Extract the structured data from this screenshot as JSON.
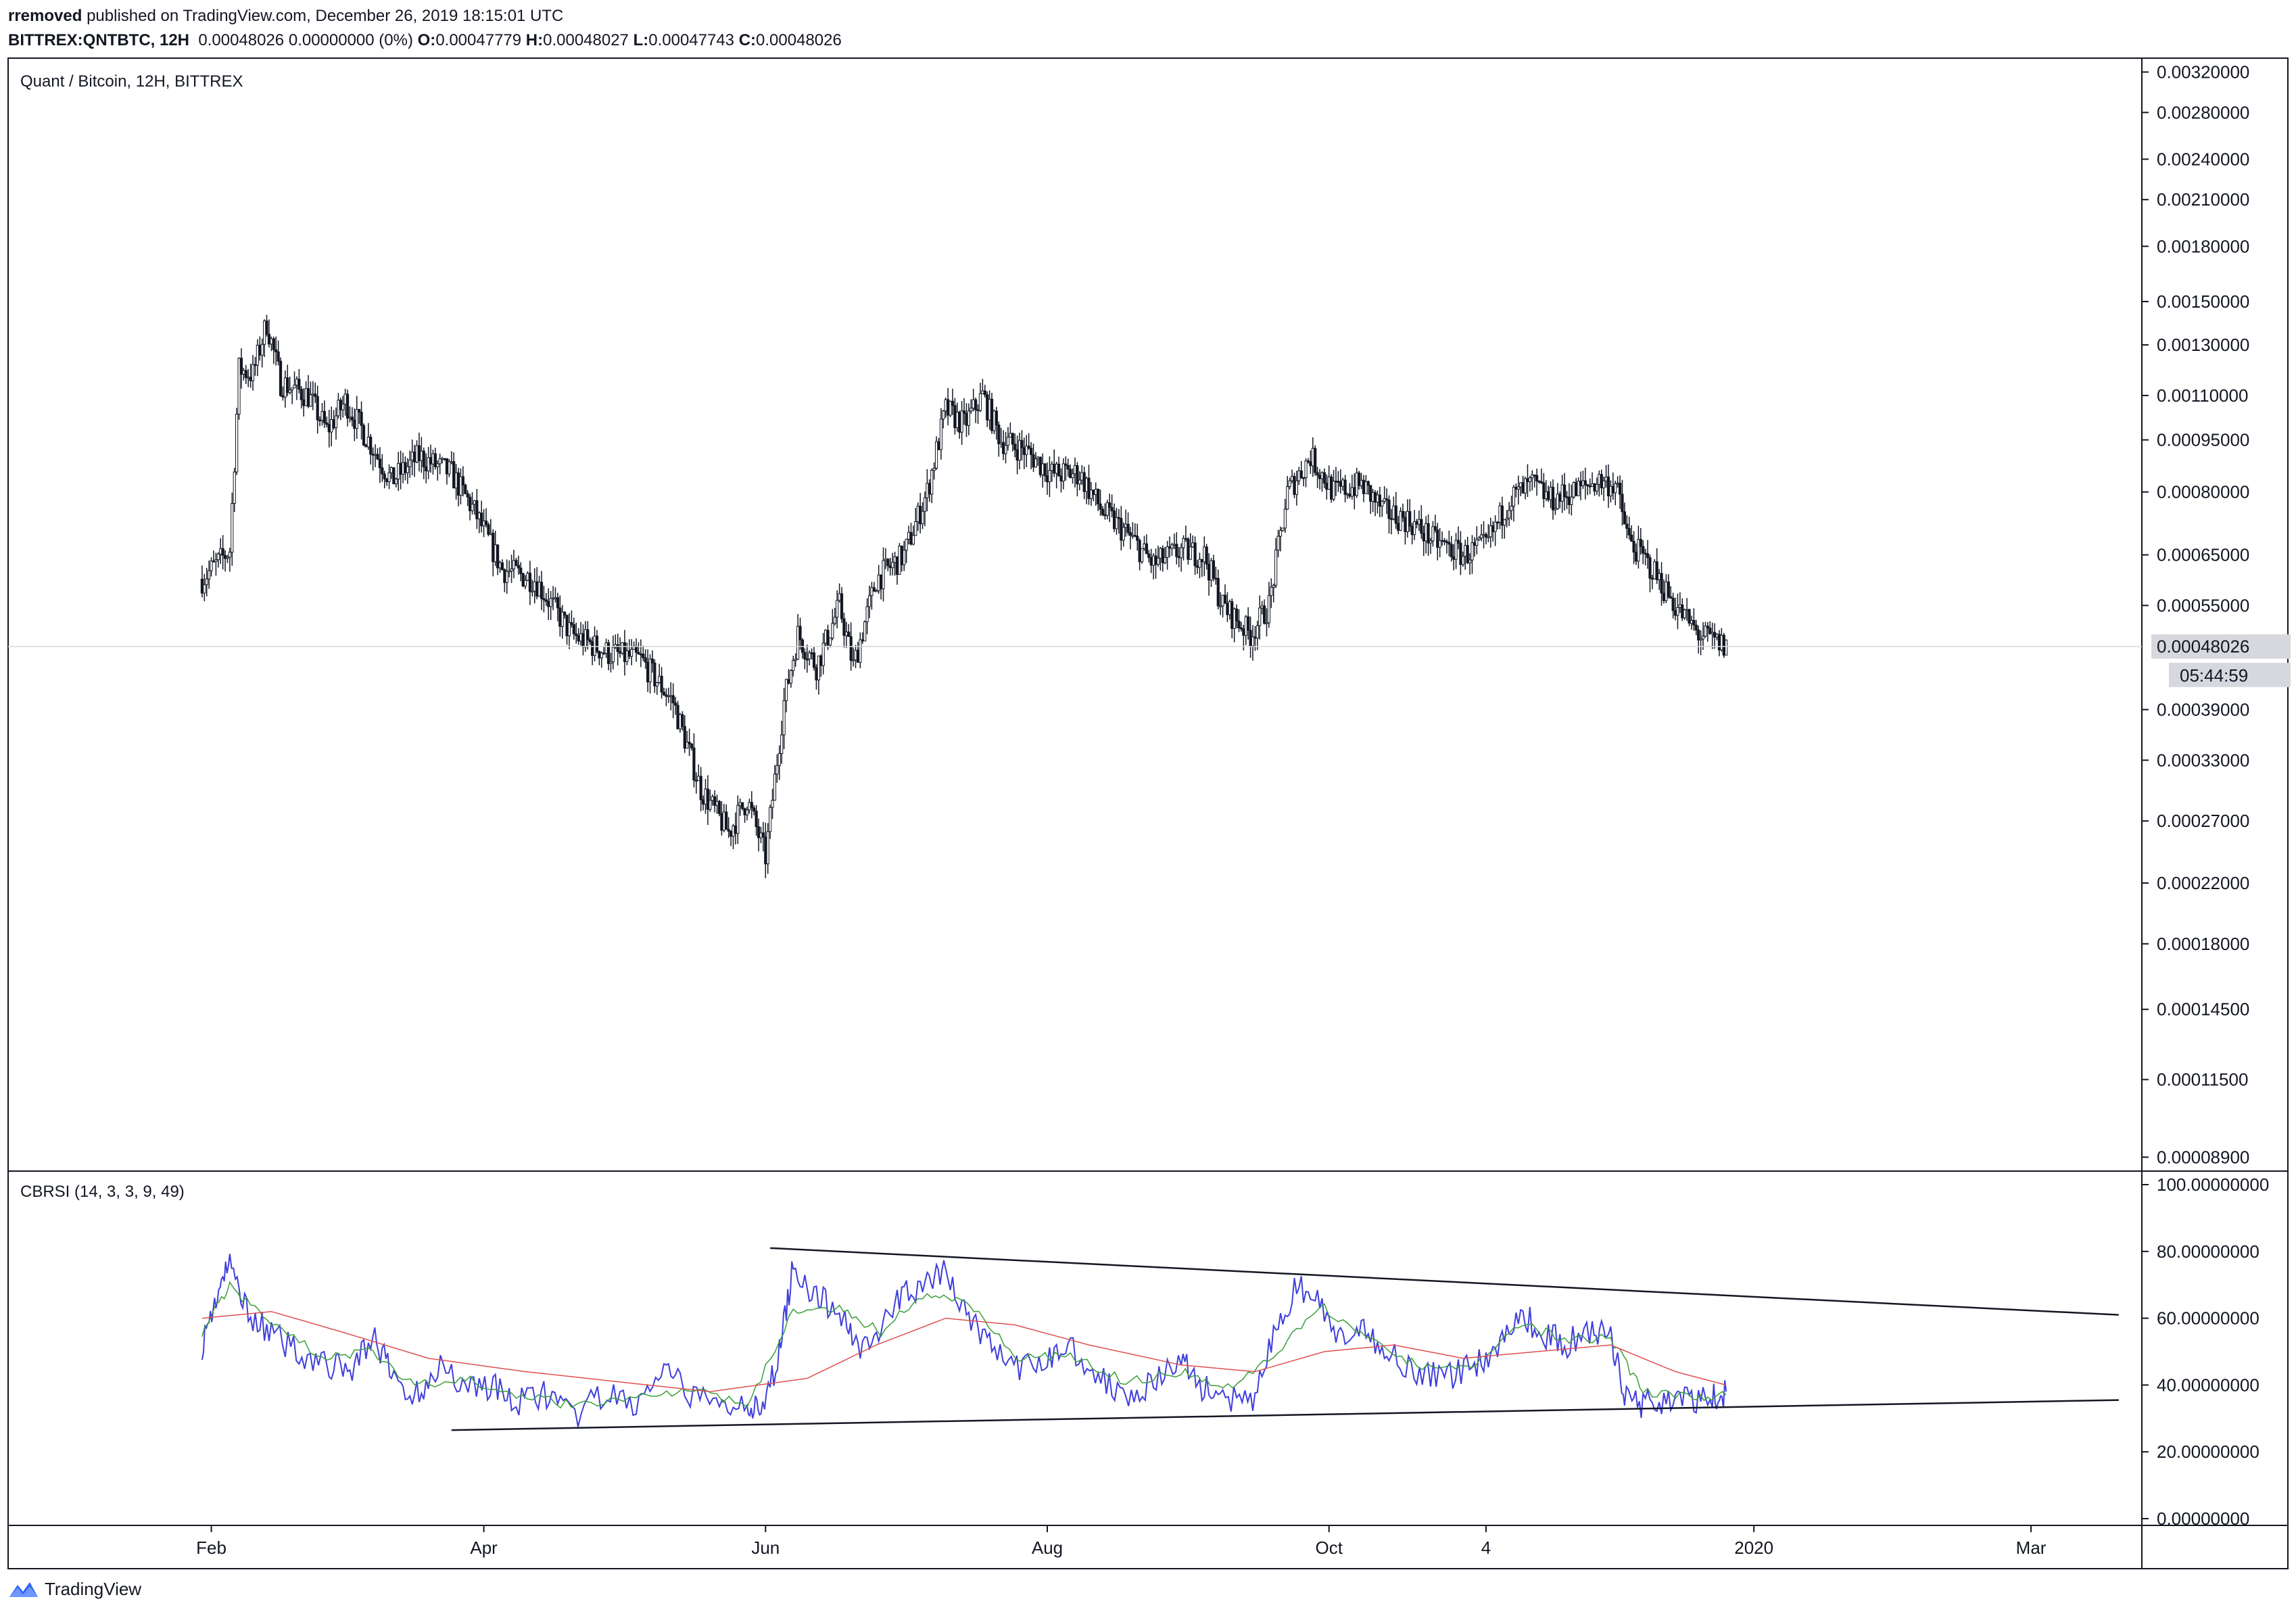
{
  "header": {
    "author": "rremoved",
    "published_text": "published on TradingView.com, December 26, 2019 18:15:01 UTC",
    "symbol": "BITTREX:QNTBTC, 12H",
    "ohlc_prefix": "0.00048026 0.00000000 (0%)",
    "open_label": "O:",
    "open": "0.00047779",
    "high_label": "H:",
    "high": "0.00048027",
    "low_label": "L:",
    "low": "0.00047743",
    "close_label": "C:",
    "close": "0.00048026"
  },
  "footer": {
    "brand": "TradingView",
    "logo_icon": "tradingview-logo-icon"
  },
  "chart_data": [
    {
      "type": "candlestick",
      "title": "Quant / Bitcoin, 12H, BITTREX",
      "scale": "log",
      "price_ticks": [
        "0.00320000",
        "0.00280000",
        "0.00240000",
        "0.00210000",
        "0.00180000",
        "0.00150000",
        "0.00130000",
        "0.00110000",
        "0.00095000",
        "0.00080000",
        "0.00065000",
        "0.00055000",
        "0.00039000",
        "0.00033000",
        "0.00027000",
        "0.00022000",
        "0.00018000",
        "0.00014500",
        "0.00011500",
        "0.00008900"
      ],
      "last_price": "0.00048026",
      "countdown": "05:44:59",
      "ylim": [
        8.5e-05,
        0.00335
      ],
      "x_labels": [
        "Feb",
        "Apr",
        "Jun",
        "Aug",
        "Oct",
        "4",
        "2020",
        "Mar"
      ],
      "x_label_dates": [
        "2019-02-01",
        "2019-04-01",
        "2019-06-01",
        "2019-08-01",
        "2019-10-01",
        "2019-11-04",
        "2020-01-01",
        "2020-03-01"
      ],
      "x_range": [
        "2018-12-19",
        "2020-03-25"
      ],
      "price_path": [
        [
          "2019-01-30",
          0.0006
        ],
        [
          "2019-02-05",
          0.00066
        ],
        [
          "2019-02-07",
          0.0012
        ],
        [
          "2019-02-10",
          0.00118
        ],
        [
          "2019-02-13",
          0.0014
        ],
        [
          "2019-02-16",
          0.00115
        ],
        [
          "2019-02-22",
          0.0011
        ],
        [
          "2019-02-26",
          0.00098
        ],
        [
          "2019-03-02",
          0.00108
        ],
        [
          "2019-03-07",
          0.00095
        ],
        [
          "2019-03-12",
          0.00083
        ],
        [
          "2019-03-18",
          0.0009
        ],
        [
          "2019-03-25",
          0.00085
        ],
        [
          "2019-03-30",
          0.00075
        ],
        [
          "2019-04-05",
          0.00062
        ],
        [
          "2019-04-12",
          0.0006
        ],
        [
          "2019-04-20",
          0.0005
        ],
        [
          "2019-04-28",
          0.00047
        ],
        [
          "2019-05-05",
          0.00046
        ],
        [
          "2019-05-12",
          0.0004
        ],
        [
          "2019-05-18",
          0.0003
        ],
        [
          "2019-05-24",
          0.00026
        ],
        [
          "2019-05-28",
          0.00029
        ],
        [
          "2019-06-01",
          0.00024
        ],
        [
          "2019-06-05",
          0.0004
        ],
        [
          "2019-06-08",
          0.0005
        ],
        [
          "2019-06-12",
          0.00045
        ],
        [
          "2019-06-17",
          0.00055
        ],
        [
          "2019-06-20",
          0.00045
        ],
        [
          "2019-06-25",
          0.0006
        ],
        [
          "2019-07-01",
          0.00065
        ],
        [
          "2019-07-06",
          0.0008
        ],
        [
          "2019-07-10",
          0.00105
        ],
        [
          "2019-07-14",
          0.001
        ],
        [
          "2019-07-18",
          0.0011
        ],
        [
          "2019-07-22",
          0.00095
        ],
        [
          "2019-07-27",
          0.00092
        ],
        [
          "2019-08-02",
          0.00085
        ],
        [
          "2019-08-08",
          0.00085
        ],
        [
          "2019-08-13",
          0.00075
        ],
        [
          "2019-08-18",
          0.0007
        ],
        [
          "2019-08-24",
          0.00063
        ],
        [
          "2019-08-30",
          0.00066
        ],
        [
          "2019-09-04",
          0.00065
        ],
        [
          "2019-09-08",
          0.00055
        ],
        [
          "2019-09-14",
          0.0005
        ],
        [
          "2019-09-18",
          0.00055
        ],
        [
          "2019-09-22",
          0.0008
        ],
        [
          "2019-09-27",
          0.0009
        ],
        [
          "2019-10-02",
          0.0008
        ],
        [
          "2019-10-08",
          0.00082
        ],
        [
          "2019-10-13",
          0.00075
        ],
        [
          "2019-10-18",
          0.00073
        ],
        [
          "2019-10-24",
          0.00068
        ],
        [
          "2019-10-30",
          0.00065
        ],
        [
          "2019-11-04",
          0.00067
        ],
        [
          "2019-11-09",
          0.00078
        ],
        [
          "2019-11-14",
          0.00082
        ],
        [
          "2019-11-18",
          0.00078
        ],
        [
          "2019-11-23",
          0.0008
        ],
        [
          "2019-11-28",
          0.00083
        ],
        [
          "2019-12-02",
          0.00082
        ],
        [
          "2019-12-05",
          0.00068
        ],
        [
          "2019-12-10",
          0.00062
        ],
        [
          "2019-12-15",
          0.00055
        ],
        [
          "2019-12-20",
          0.0005
        ],
        [
          "2019-12-26",
          0.00048
        ]
      ]
    },
    {
      "type": "line",
      "title": "CBRSI (14, 3, 3, 9, 49)",
      "ylim": [
        0,
        100
      ],
      "y_ticks": [
        "100.00000000",
        "80.00000000",
        "60.00000000",
        "40.00000000",
        "20.00000000",
        "0.00000000"
      ],
      "series": [
        {
          "color": "#3f3fdc",
          "values": [
            [
              "2019-01-30",
              52
            ],
            [
              "2019-02-02",
              66
            ],
            [
              "2019-02-05",
              76
            ],
            [
              "2019-02-09",
              62
            ],
            [
              "2019-02-14",
              55
            ],
            [
              "2019-02-20",
              50
            ],
            [
              "2019-02-26",
              46
            ],
            [
              "2019-03-03",
              44
            ],
            [
              "2019-03-08",
              55
            ],
            [
              "2019-03-12",
              43
            ],
            [
              "2019-03-17",
              36
            ],
            [
              "2019-03-22",
              46
            ],
            [
              "2019-03-28",
              40
            ],
            [
              "2019-04-03",
              40
            ],
            [
              "2019-04-08",
              34
            ],
            [
              "2019-04-14",
              38
            ],
            [
              "2019-04-20",
              30
            ],
            [
              "2019-04-27",
              37
            ],
            [
              "2019-05-04",
              34
            ],
            [
              "2019-05-10",
              44
            ],
            [
              "2019-05-15",
              38
            ],
            [
              "2019-05-22",
              33
            ],
            [
              "2019-05-28",
              36
            ],
            [
              "2019-05-31",
              30
            ],
            [
              "2019-06-04",
              50
            ],
            [
              "2019-06-07",
              76
            ],
            [
              "2019-06-12",
              66
            ],
            [
              "2019-06-17",
              62
            ],
            [
              "2019-06-21",
              52
            ],
            [
              "2019-06-26",
              56
            ],
            [
              "2019-07-01",
              68
            ],
            [
              "2019-07-06",
              70
            ],
            [
              "2019-07-10",
              74
            ],
            [
              "2019-07-15",
              60
            ],
            [
              "2019-07-20",
              52
            ],
            [
              "2019-07-26",
              44
            ],
            [
              "2019-08-01",
              48
            ],
            [
              "2019-08-06",
              52
            ],
            [
              "2019-08-12",
              42
            ],
            [
              "2019-08-18",
              38
            ],
            [
              "2019-08-24",
              40
            ],
            [
              "2019-08-30",
              48
            ],
            [
              "2019-09-03",
              40
            ],
            [
              "2019-09-08",
              36
            ],
            [
              "2019-09-14",
              34
            ],
            [
              "2019-09-19",
              54
            ],
            [
              "2019-09-24",
              70
            ],
            [
              "2019-09-29",
              64
            ],
            [
              "2019-10-04",
              52
            ],
            [
              "2019-10-09",
              56
            ],
            [
              "2019-10-14",
              50
            ],
            [
              "2019-10-20",
              44
            ],
            [
              "2019-10-26",
              42
            ],
            [
              "2019-11-01",
              46
            ],
            [
              "2019-11-06",
              50
            ],
            [
              "2019-11-11",
              62
            ],
            [
              "2019-11-16",
              56
            ],
            [
              "2019-11-21",
              52
            ],
            [
              "2019-11-27",
              56
            ],
            [
              "2019-12-01",
              54
            ],
            [
              "2019-12-04",
              38
            ],
            [
              "2019-12-08",
              34
            ],
            [
              "2019-12-13",
              36
            ],
            [
              "2019-12-18",
              35
            ],
            [
              "2019-12-23",
              36
            ],
            [
              "2019-12-26",
              38
            ]
          ]
        },
        {
          "color": "#3a9e3a",
          "values": [
            [
              "2019-01-30",
              56
            ],
            [
              "2019-02-05",
              70
            ],
            [
              "2019-02-14",
              58
            ],
            [
              "2019-02-26",
              48
            ],
            [
              "2019-03-08",
              50
            ],
            [
              "2019-03-17",
              40
            ],
            [
              "2019-03-28",
              42
            ],
            [
              "2019-04-08",
              37
            ],
            [
              "2019-04-20",
              34
            ],
            [
              "2019-05-04",
              36
            ],
            [
              "2019-05-15",
              39
            ],
            [
              "2019-05-28",
              34
            ],
            [
              "2019-06-07",
              62
            ],
            [
              "2019-06-17",
              63
            ],
            [
              "2019-06-26",
              56
            ],
            [
              "2019-07-06",
              68
            ],
            [
              "2019-07-15",
              64
            ],
            [
              "2019-07-26",
              48
            ],
            [
              "2019-08-06",
              49
            ],
            [
              "2019-08-18",
              41
            ],
            [
              "2019-08-30",
              44
            ],
            [
              "2019-09-08",
              38
            ],
            [
              "2019-09-19",
              48
            ],
            [
              "2019-09-29",
              64
            ],
            [
              "2019-10-09",
              54
            ],
            [
              "2019-10-20",
              46
            ],
            [
              "2019-11-01",
              45
            ],
            [
              "2019-11-11",
              58
            ],
            [
              "2019-11-21",
              54
            ],
            [
              "2019-12-01",
              54
            ],
            [
              "2019-12-08",
              38
            ],
            [
              "2019-12-18",
              36
            ],
            [
              "2019-12-26",
              37
            ]
          ]
        },
        {
          "color": "#e05050",
          "values": [
            [
              "2019-01-30",
              60
            ],
            [
              "2019-02-14",
              62
            ],
            [
              "2019-03-01",
              56
            ],
            [
              "2019-03-20",
              48
            ],
            [
              "2019-04-10",
              44
            ],
            [
              "2019-04-30",
              41
            ],
            [
              "2019-05-20",
              38
            ],
            [
              "2019-06-10",
              42
            ],
            [
              "2019-06-25",
              52
            ],
            [
              "2019-07-10",
              60
            ],
            [
              "2019-07-25",
              58
            ],
            [
              "2019-08-10",
              52
            ],
            [
              "2019-08-30",
              46
            ],
            [
              "2019-09-15",
              44
            ],
            [
              "2019-09-30",
              50
            ],
            [
              "2019-10-15",
              52
            ],
            [
              "2019-10-30",
              48
            ],
            [
              "2019-11-15",
              50
            ],
            [
              "2019-12-01",
              52
            ],
            [
              "2019-12-15",
              44
            ],
            [
              "2019-12-26",
              40
            ]
          ]
        }
      ],
      "trendlines": [
        {
          "from": [
            "2019-06-02",
            81
          ],
          "to": [
            "2020-03-20",
            61
          ]
        },
        {
          "from": [
            "2019-03-25",
            26.5
          ],
          "to": [
            "2020-03-20",
            35.5
          ]
        }
      ]
    }
  ]
}
